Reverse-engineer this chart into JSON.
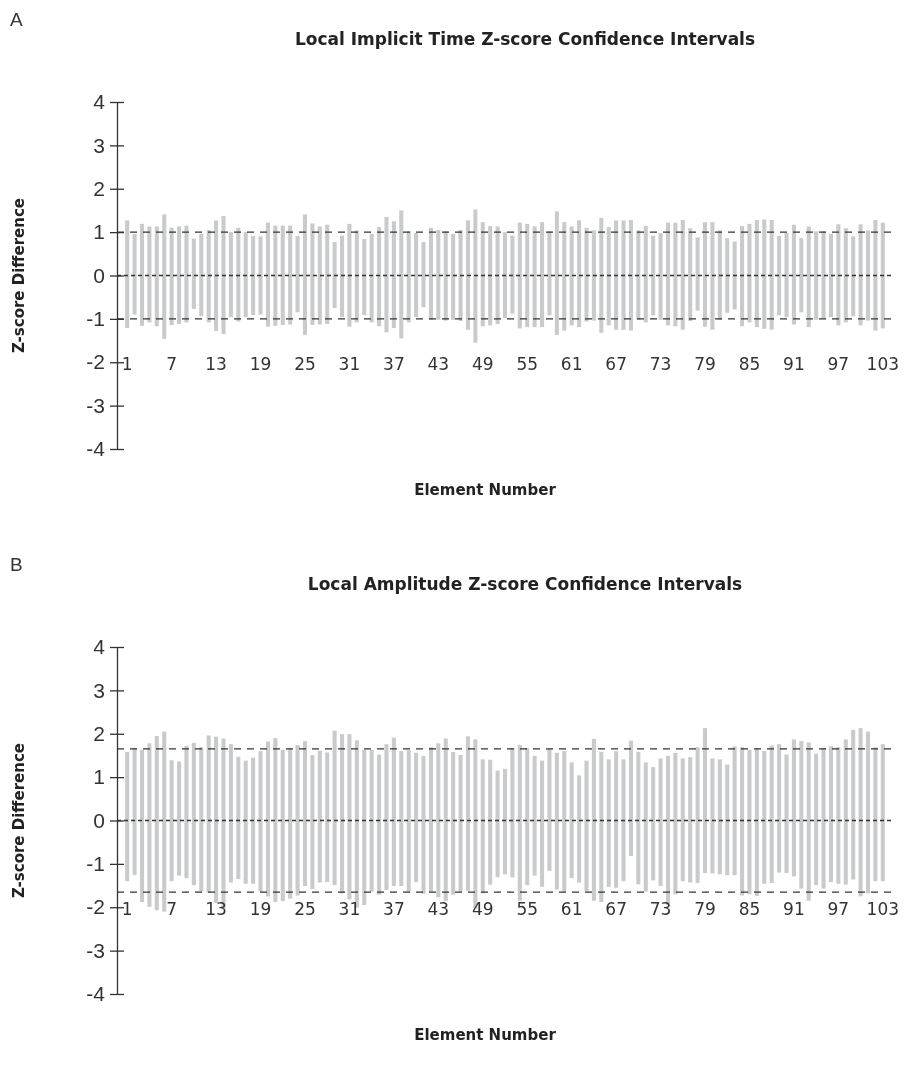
{
  "chart_data": [
    {
      "type": "bar",
      "title": "Local Implicit Time Z-score Confidence Intervals",
      "xlabel": "Element Number",
      "ylabel": "Z-score Difference",
      "annotations": [
        "A"
      ],
      "color": "#c9cacc",
      "categories": [
        "1",
        null,
        null,
        null,
        null,
        null,
        "7",
        null,
        null,
        null,
        null,
        null,
        "13",
        null,
        null,
        null,
        null,
        null,
        "19",
        null,
        null,
        null,
        null,
        null,
        "25",
        null,
        null,
        null,
        null,
        null,
        "31",
        null,
        null,
        null,
        null,
        null,
        "37",
        null,
        null,
        null,
        null,
        null,
        "43",
        null,
        null,
        null,
        null,
        null,
        "49",
        null,
        null,
        null,
        null,
        null,
        "55",
        null,
        null,
        null,
        null,
        null,
        "61",
        null,
        null,
        null,
        null,
        null,
        "67",
        null,
        null,
        null,
        null,
        null,
        "73",
        null,
        null,
        null,
        null,
        null,
        "79",
        null,
        null,
        null,
        null,
        null,
        "85",
        null,
        null,
        null,
        null,
        null,
        "91",
        null,
        null,
        null,
        null,
        null,
        "97",
        null,
        null,
        null,
        null,
        null,
        "103"
      ],
      "base": [
        -1.21,
        -0.9,
        -1.16,
        -1.08,
        -1.17,
        -1.46,
        -1.14,
        -1.12,
        -1.08,
        -0.77,
        -0.94,
        -1.08,
        -1.28,
        -1.35,
        -0.96,
        -1.06,
        -0.96,
        -0.91,
        -0.9,
        -1.18,
        -1.16,
        -1.14,
        -1.13,
        -0.85,
        -1.37,
        -1.14,
        -1.13,
        -1.12,
        -0.75,
        -0.96,
        -1.18,
        -1.08,
        -0.91,
        -1.08,
        -1.17,
        -1.31,
        -1.21,
        -1.45,
        -1.08,
        -0.96,
        -0.73,
        -1.02,
        -1.02,
        -1.04,
        -1.02,
        -1.05,
        -1.25,
        -1.55,
        -1.17,
        -1.15,
        -1.12,
        -0.98,
        -0.88,
        -1.22,
        -1.19,
        -1.19,
        -1.19,
        -0.92,
        -1.37,
        -1.27,
        -1.15,
        -1.19,
        -1.06,
        -1.04,
        -1.32,
        -1.15,
        -1.25,
        -1.25,
        -1.27,
        -1.02,
        -1.08,
        -0.92,
        -1.02,
        -1.15,
        -1.17,
        -1.25,
        -1.05,
        -0.81,
        -1.18,
        -1.25,
        -1.02,
        -0.86,
        -0.78,
        -1.17,
        -1.08,
        -1.19,
        -1.23,
        -1.25,
        -0.92,
        -0.96,
        -1.13,
        -0.85,
        -1.19,
        -1.02,
        -0.98,
        -0.96,
        -1.15,
        -1.08,
        -0.94,
        -1.15,
        -1.04,
        -1.27,
        -1.22
      ],
      "values": [
        2.48,
        1.86,
        2.35,
        2.21,
        2.3,
        2.87,
        2.24,
        2.25,
        2.23,
        1.62,
        1.9,
        2.13,
        2.55,
        2.72,
        1.96,
        2.16,
        1.96,
        1.82,
        1.8,
        2.4,
        2.31,
        2.29,
        2.28,
        1.76,
        2.78,
        2.34,
        2.26,
        2.29,
        1.52,
        1.88,
        2.37,
        2.12,
        1.75,
        2.04,
        2.29,
        2.66,
        2.46,
        2.95,
        2.1,
        1.94,
        1.5,
        2.12,
        2.07,
        2.06,
        1.98,
        2.1,
        2.52,
        3.07,
        2.4,
        2.29,
        2.25,
        1.98,
        1.8,
        2.44,
        2.38,
        2.32,
        2.42,
        1.94,
        2.85,
        2.5,
        2.28,
        2.46,
        2.16,
        2.08,
        2.65,
        2.27,
        2.52,
        2.52,
        2.55,
        2.06,
        2.22,
        1.84,
        2.0,
        2.37,
        2.39,
        2.53,
        2.14,
        1.69,
        2.41,
        2.48,
        2.06,
        1.72,
        1.56,
        2.31,
        2.27,
        2.47,
        2.52,
        2.53,
        1.83,
        1.94,
        2.3,
        1.71,
        2.32,
        2.04,
        2.0,
        1.92,
        2.33,
        2.17,
        1.84,
        2.33,
        2.08,
        2.55,
        2.44
      ],
      "ylim": [
        -4,
        4
      ],
      "yticks": [
        -4,
        -3,
        -2,
        -1,
        0,
        1,
        2,
        3,
        4
      ],
      "ref_lines": [
        {
          "axis": "y",
          "value": 1,
          "color": "#333333",
          "line_style": "dashed"
        },
        {
          "axis": "y",
          "value": 0,
          "color": "#333333",
          "line_style": "dotted"
        },
        {
          "axis": "y",
          "value": -1,
          "color": "#333333",
          "line_style": "dashed"
        }
      ]
    },
    {
      "type": "bar",
      "title": "Local Amplitude Z-score Confidence Intervals",
      "xlabel": "Element Number",
      "ylabel": "Z-score Difference",
      "annotations": [
        "B"
      ],
      "color": "#c9cacc",
      "categories": [
        "1",
        null,
        null,
        null,
        null,
        null,
        "7",
        null,
        null,
        null,
        null,
        null,
        "13",
        null,
        null,
        null,
        null,
        null,
        "19",
        null,
        null,
        null,
        null,
        null,
        "25",
        null,
        null,
        null,
        null,
        null,
        "31",
        null,
        null,
        null,
        null,
        null,
        "37",
        null,
        null,
        null,
        null,
        null,
        "43",
        null,
        null,
        null,
        null,
        null,
        "49",
        null,
        null,
        null,
        null,
        null,
        "55",
        null,
        null,
        null,
        null,
        null,
        "61",
        null,
        null,
        null,
        null,
        null,
        "67",
        null,
        null,
        null,
        null,
        null,
        "73",
        null,
        null,
        null,
        null,
        null,
        "79",
        null,
        null,
        null,
        null,
        null,
        "85",
        null,
        null,
        null,
        null,
        null,
        "91",
        null,
        null,
        null,
        null,
        null,
        "97",
        null,
        null,
        null,
        null,
        null,
        "103"
      ],
      "base": [
        -1.4,
        -1.26,
        -1.88,
        -1.99,
        -2.07,
        -2.1,
        -1.4,
        -1.27,
        -1.33,
        -1.49,
        -1.64,
        -1.66,
        -1.9,
        -2.04,
        -1.43,
        -1.35,
        -1.46,
        -1.46,
        -1.64,
        -1.75,
        -1.88,
        -1.86,
        -1.8,
        -1.73,
        -1.51,
        -1.58,
        -1.43,
        -1.42,
        -1.49,
        -1.68,
        -1.82,
        -2.01,
        -1.95,
        -1.64,
        -1.71,
        -1.6,
        -1.51,
        -1.51,
        -1.64,
        -1.42,
        -1.69,
        -1.64,
        -1.77,
        -1.86,
        -1.71,
        -1.64,
        -1.62,
        -2.03,
        -1.68,
        -1.48,
        -1.31,
        -1.24,
        -1.31,
        -1.85,
        -1.49,
        -1.27,
        -1.53,
        -1.16,
        -1.59,
        -1.64,
        -1.33,
        -1.43,
        -1.63,
        -1.85,
        -1.88,
        -1.53,
        -1.55,
        -1.4,
        -0.82,
        -1.47,
        -1.64,
        -1.38,
        -1.51,
        -1.95,
        -1.7,
        -1.4,
        -1.43,
        -1.44,
        -1.21,
        -1.22,
        -1.24,
        -1.26,
        -1.26,
        -1.73,
        -1.7,
        -1.74,
        -1.46,
        -1.44,
        -1.2,
        -1.21,
        -1.29,
        -1.57,
        -1.85,
        -1.49,
        -1.57,
        -1.42,
        -1.46,
        -1.48,
        -1.36,
        -1.75,
        -1.68,
        -1.4,
        -1.4
      ],
      "values": [
        2.98,
        2.93,
        3.51,
        3.77,
        4.02,
        4.15,
        2.79,
        2.63,
        3.05,
        3.28,
        3.33,
        3.62,
        3.83,
        3.93,
        3.19,
        2.82,
        2.84,
        2.91,
        3.24,
        3.57,
        3.78,
        3.49,
        3.45,
        3.47,
        3.34,
        3.09,
        3.04,
        2.99,
        3.56,
        3.67,
        3.81,
        3.86,
        3.58,
        3.27,
        3.23,
        3.36,
        3.42,
        3.11,
        3.26,
        2.98,
        3.18,
        3.33,
        3.55,
        3.75,
        3.29,
        3.15,
        3.56,
        3.9,
        3.09,
        2.88,
        2.46,
        2.43,
        2.98,
        3.59,
        3.16,
        2.76,
        2.91,
        2.81,
        3.15,
        3.24,
        2.67,
        2.47,
        3.01,
        3.73,
        3.46,
        2.94,
        3.15,
        2.81,
        2.66,
        3.05,
        2.98,
        2.61,
        2.94,
        3.44,
        3.26,
        2.83,
        2.89,
        3.13,
        3.34,
        2.65,
        2.65,
        2.55,
        2.97,
        3.42,
        3.33,
        3.41,
        3.06,
        3.17,
        2.96,
        2.73,
        3.16,
        3.4,
        3.65,
        3.03,
        3.24,
        3.13,
        3.15,
        3.35,
        3.45,
        3.88,
        3.73,
        3.09,
        3.16
      ],
      "ylim": [
        -4,
        4
      ],
      "yticks": [
        -4,
        -3,
        -2,
        -1,
        0,
        1,
        2,
        3,
        4
      ],
      "ref_lines": [
        {
          "axis": "y",
          "value": 1.65,
          "color": "#333333",
          "line_style": "dashed"
        },
        {
          "axis": "y",
          "value": 0,
          "color": "#333333",
          "line_style": "dotted"
        },
        {
          "axis": "y",
          "value": -1.65,
          "color": "#333333",
          "line_style": "dashed"
        }
      ]
    }
  ]
}
